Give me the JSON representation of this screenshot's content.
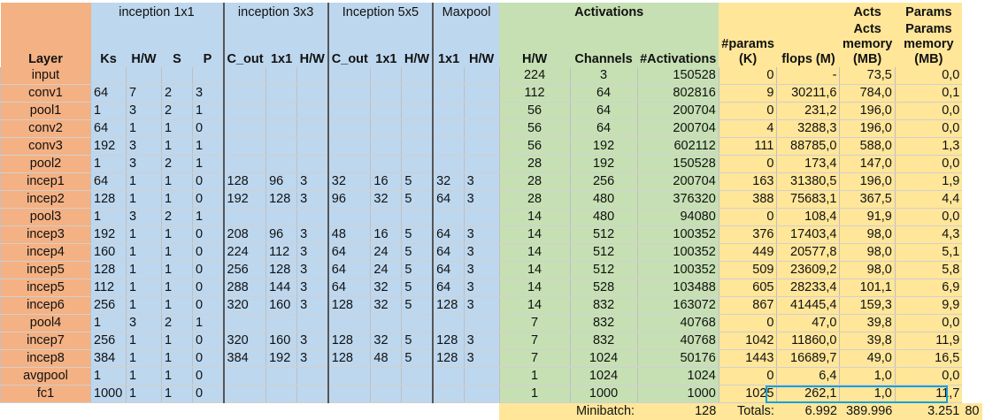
{
  "header_groups": {
    "inception_1x1": "inception 1x1",
    "inception_3x3": "inception 3x3",
    "inception_5x5": "Inception 5x5",
    "maxpool": "Maxpool",
    "activations": "Activations",
    "acts_memory": "Acts",
    "params_memory": "Params"
  },
  "columns": [
    "Layer",
    "Ks",
    "H/W",
    "S",
    "P",
    "C_out",
    "1x1",
    "H/W",
    "C_out",
    "1x1",
    "H/W",
    "1x1",
    "H/W",
    "H/W",
    "Channels",
    "#Activations",
    "#params (K)",
    "flops (M)",
    "Acts memory (MB)",
    "Params memory (MB)"
  ],
  "rows": [
    [
      "input",
      "",
      "",
      "",
      "",
      "",
      "",
      "",
      "",
      "",
      "",
      "",
      "",
      "224",
      "3",
      "150528",
      "0",
      "-",
      "73,5",
      "0,0"
    ],
    [
      "conv1",
      "64",
      "7",
      "2",
      "3",
      "",
      "",
      "",
      "",
      "",
      "",
      "",
      "",
      "112",
      "64",
      "802816",
      "9",
      "30211,6",
      "784,0",
      "0,1"
    ],
    [
      "pool1",
      "1",
      "3",
      "2",
      "1",
      "",
      "",
      "",
      "",
      "",
      "",
      "",
      "",
      "56",
      "64",
      "200704",
      "0",
      "231,2",
      "196,0",
      "0,0"
    ],
    [
      "conv2",
      "64",
      "1",
      "1",
      "0",
      "",
      "",
      "",
      "",
      "",
      "",
      "",
      "",
      "56",
      "64",
      "200704",
      "4",
      "3288,3",
      "196,0",
      "0,0"
    ],
    [
      "conv3",
      "192",
      "3",
      "1",
      "1",
      "",
      "",
      "",
      "",
      "",
      "",
      "",
      "",
      "56",
      "192",
      "602112",
      "111",
      "88785,0",
      "588,0",
      "1,3"
    ],
    [
      "pool2",
      "1",
      "3",
      "2",
      "1",
      "",
      "",
      "",
      "",
      "",
      "",
      "",
      "",
      "28",
      "192",
      "150528",
      "0",
      "173,4",
      "147,0",
      "0,0"
    ],
    [
      "incep1",
      "64",
      "1",
      "1",
      "0",
      "128",
      "96",
      "3",
      "32",
      "16",
      "5",
      "32",
      "3",
      "28",
      "256",
      "200704",
      "163",
      "31380,5",
      "196,0",
      "1,9"
    ],
    [
      "incep2",
      "128",
      "1",
      "1",
      "0",
      "192",
      "128",
      "3",
      "96",
      "32",
      "5",
      "64",
      "3",
      "28",
      "480",
      "376320",
      "388",
      "75683,1",
      "367,5",
      "4,4"
    ],
    [
      "pool3",
      "1",
      "3",
      "2",
      "1",
      "",
      "",
      "",
      "",
      "",
      "",
      "",
      "",
      "14",
      "480",
      "94080",
      "0",
      "108,4",
      "91,9",
      "0,0"
    ],
    [
      "incep3",
      "192",
      "1",
      "1",
      "0",
      "208",
      "96",
      "3",
      "48",
      "16",
      "5",
      "64",
      "3",
      "14",
      "512",
      "100352",
      "376",
      "17403,4",
      "98,0",
      "4,3"
    ],
    [
      "incep4",
      "160",
      "1",
      "1",
      "0",
      "224",
      "112",
      "3",
      "64",
      "24",
      "5",
      "64",
      "3",
      "14",
      "512",
      "100352",
      "449",
      "20577,8",
      "98,0",
      "5,1"
    ],
    [
      "incep5",
      "128",
      "1",
      "1",
      "0",
      "256",
      "128",
      "3",
      "64",
      "24",
      "5",
      "64",
      "3",
      "14",
      "512",
      "100352",
      "509",
      "23609,2",
      "98,0",
      "5,8"
    ],
    [
      "incep5",
      "112",
      "1",
      "1",
      "0",
      "288",
      "144",
      "3",
      "64",
      "32",
      "5",
      "64",
      "3",
      "14",
      "528",
      "103488",
      "605",
      "28233,4",
      "101,1",
      "6,9"
    ],
    [
      "incep6",
      "256",
      "1",
      "1",
      "0",
      "320",
      "160",
      "3",
      "128",
      "32",
      "5",
      "128",
      "3",
      "14",
      "832",
      "163072",
      "867",
      "41445,4",
      "159,3",
      "9,9"
    ],
    [
      "pool4",
      "1",
      "3",
      "2",
      "1",
      "",
      "",
      "",
      "",
      "",
      "",
      "",
      "",
      "7",
      "832",
      "40768",
      "0",
      "47,0",
      "39,8",
      "0,0"
    ],
    [
      "incep7",
      "256",
      "1",
      "1",
      "0",
      "320",
      "160",
      "3",
      "128",
      "32",
      "5",
      "128",
      "3",
      "7",
      "832",
      "40768",
      "1042",
      "11860,0",
      "39,8",
      "11,9"
    ],
    [
      "incep8",
      "384",
      "1",
      "1",
      "0",
      "384",
      "192",
      "3",
      "128",
      "48",
      "5",
      "128",
      "3",
      "7",
      "1024",
      "50176",
      "1443",
      "16689,7",
      "49,0",
      "16,5"
    ],
    [
      "avgpool",
      "1",
      "1",
      "1",
      "0",
      "",
      "",
      "",
      "",
      "",
      "",
      "",
      "",
      "1",
      "1024",
      "1024",
      "0",
      "6,4",
      "1,0",
      "0,0"
    ],
    [
      "fc1",
      "1000",
      "1",
      "1",
      "0",
      "",
      "",
      "",
      "",
      "",
      "",
      "",
      "",
      "1",
      "1000",
      "1000",
      "1025",
      "262,1",
      "1,0",
      "11,7"
    ]
  ],
  "footer": {
    "minibatch_label": "Minibatch:",
    "minibatch_value": "128",
    "totals_label": "Totals:",
    "total_params": "6.992",
    "total_flops": "389.996",
    "total_acts_mem": "3.251",
    "total_params_mem": "80"
  },
  "colors": {
    "layer_column": "#f4b183",
    "inception_columns": "#bdd7ee",
    "activations_columns": "#c6e0b4",
    "stats_columns": "#ffe699",
    "totals_highlight": "#1aa0d8"
  }
}
